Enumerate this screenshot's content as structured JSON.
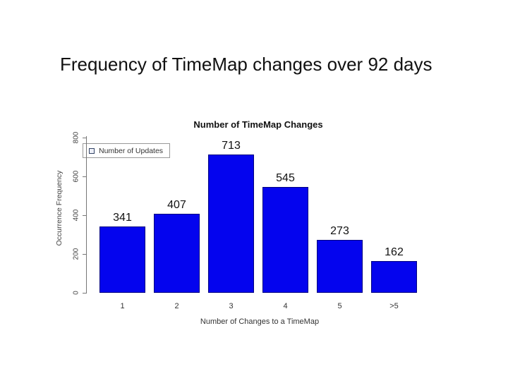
{
  "slide": {
    "title": "Frequency of TimeMap changes over 92 days"
  },
  "chart_data": {
    "type": "bar",
    "title": "Number of TimeMap Changes",
    "xlabel": "Number of Changes to a TimeMap",
    "ylabel": "Occurrence Frequency",
    "categories": [
      "1",
      "2",
      "3",
      "4",
      "5",
      ">5"
    ],
    "values": [
      341,
      407,
      713,
      545,
      273,
      162
    ],
    "ylim": [
      0,
      800
    ],
    "yticks": [
      0,
      200,
      400,
      600,
      800
    ],
    "grid": false,
    "legend": {
      "label": "Number of Updates",
      "position": "top-left",
      "marker": "square-icon"
    },
    "bar_color": "#0404ee",
    "bar_border_color": "#000080",
    "axis_color": "#777777",
    "text_color": "#444444"
  }
}
